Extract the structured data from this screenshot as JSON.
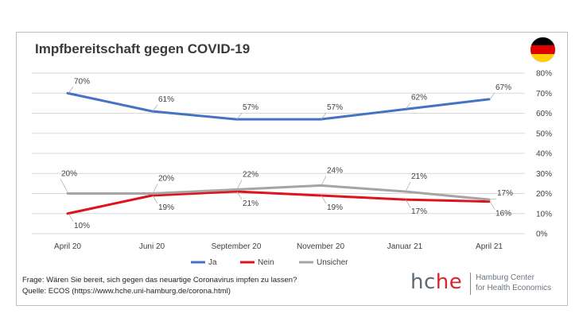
{
  "title": "Impfbereitschaft gegen COVID-19",
  "flag": {
    "name": "germany-flag-icon",
    "colors": [
      "#000000",
      "#dd0000",
      "#ffce00"
    ]
  },
  "question": "Frage: Wären Sie bereit, sich gegen das neuartige Coronavirus impfen zu lassen?",
  "source": "Quelle: ECOS (https://www.hche.uni-hamburg.de/corona.html)",
  "logo": {
    "part1": "hc",
    "part2": "he",
    "line1": "Hamburg Center",
    "line2": "for Health Economics"
  },
  "chart_data": {
    "type": "line",
    "title": "Impfbereitschaft gegen COVID-19",
    "categories": [
      "April 20",
      "Juni 20",
      "September 20",
      "November 20",
      "Januar 21",
      "April 21"
    ],
    "ylim": [
      0,
      80
    ],
    "yticks": [
      "0%",
      "10%",
      "20%",
      "30%",
      "40%",
      "50%",
      "60%",
      "70%",
      "80%"
    ],
    "grid": true,
    "legend_position": "bottom",
    "series": [
      {
        "name": "Ja",
        "color": "#4472c4",
        "values": [
          70,
          61,
          57,
          57,
          62,
          67
        ],
        "labels": [
          "70%",
          "61%",
          "57%",
          "57%",
          "62%",
          "67%"
        ]
      },
      {
        "name": "Nein",
        "color": "#e0131a",
        "values": [
          10,
          19,
          21,
          19,
          17,
          16
        ],
        "labels": [
          "10%",
          "19%",
          "21%",
          "19%",
          "17%",
          "16%"
        ]
      },
      {
        "name": "Unsicher",
        "color": "#a5a5a5",
        "values": [
          20,
          20,
          22,
          24,
          21,
          17
        ],
        "labels": [
          "20%",
          "20%",
          "22%",
          "24%",
          "21%",
          "17%"
        ]
      }
    ]
  }
}
